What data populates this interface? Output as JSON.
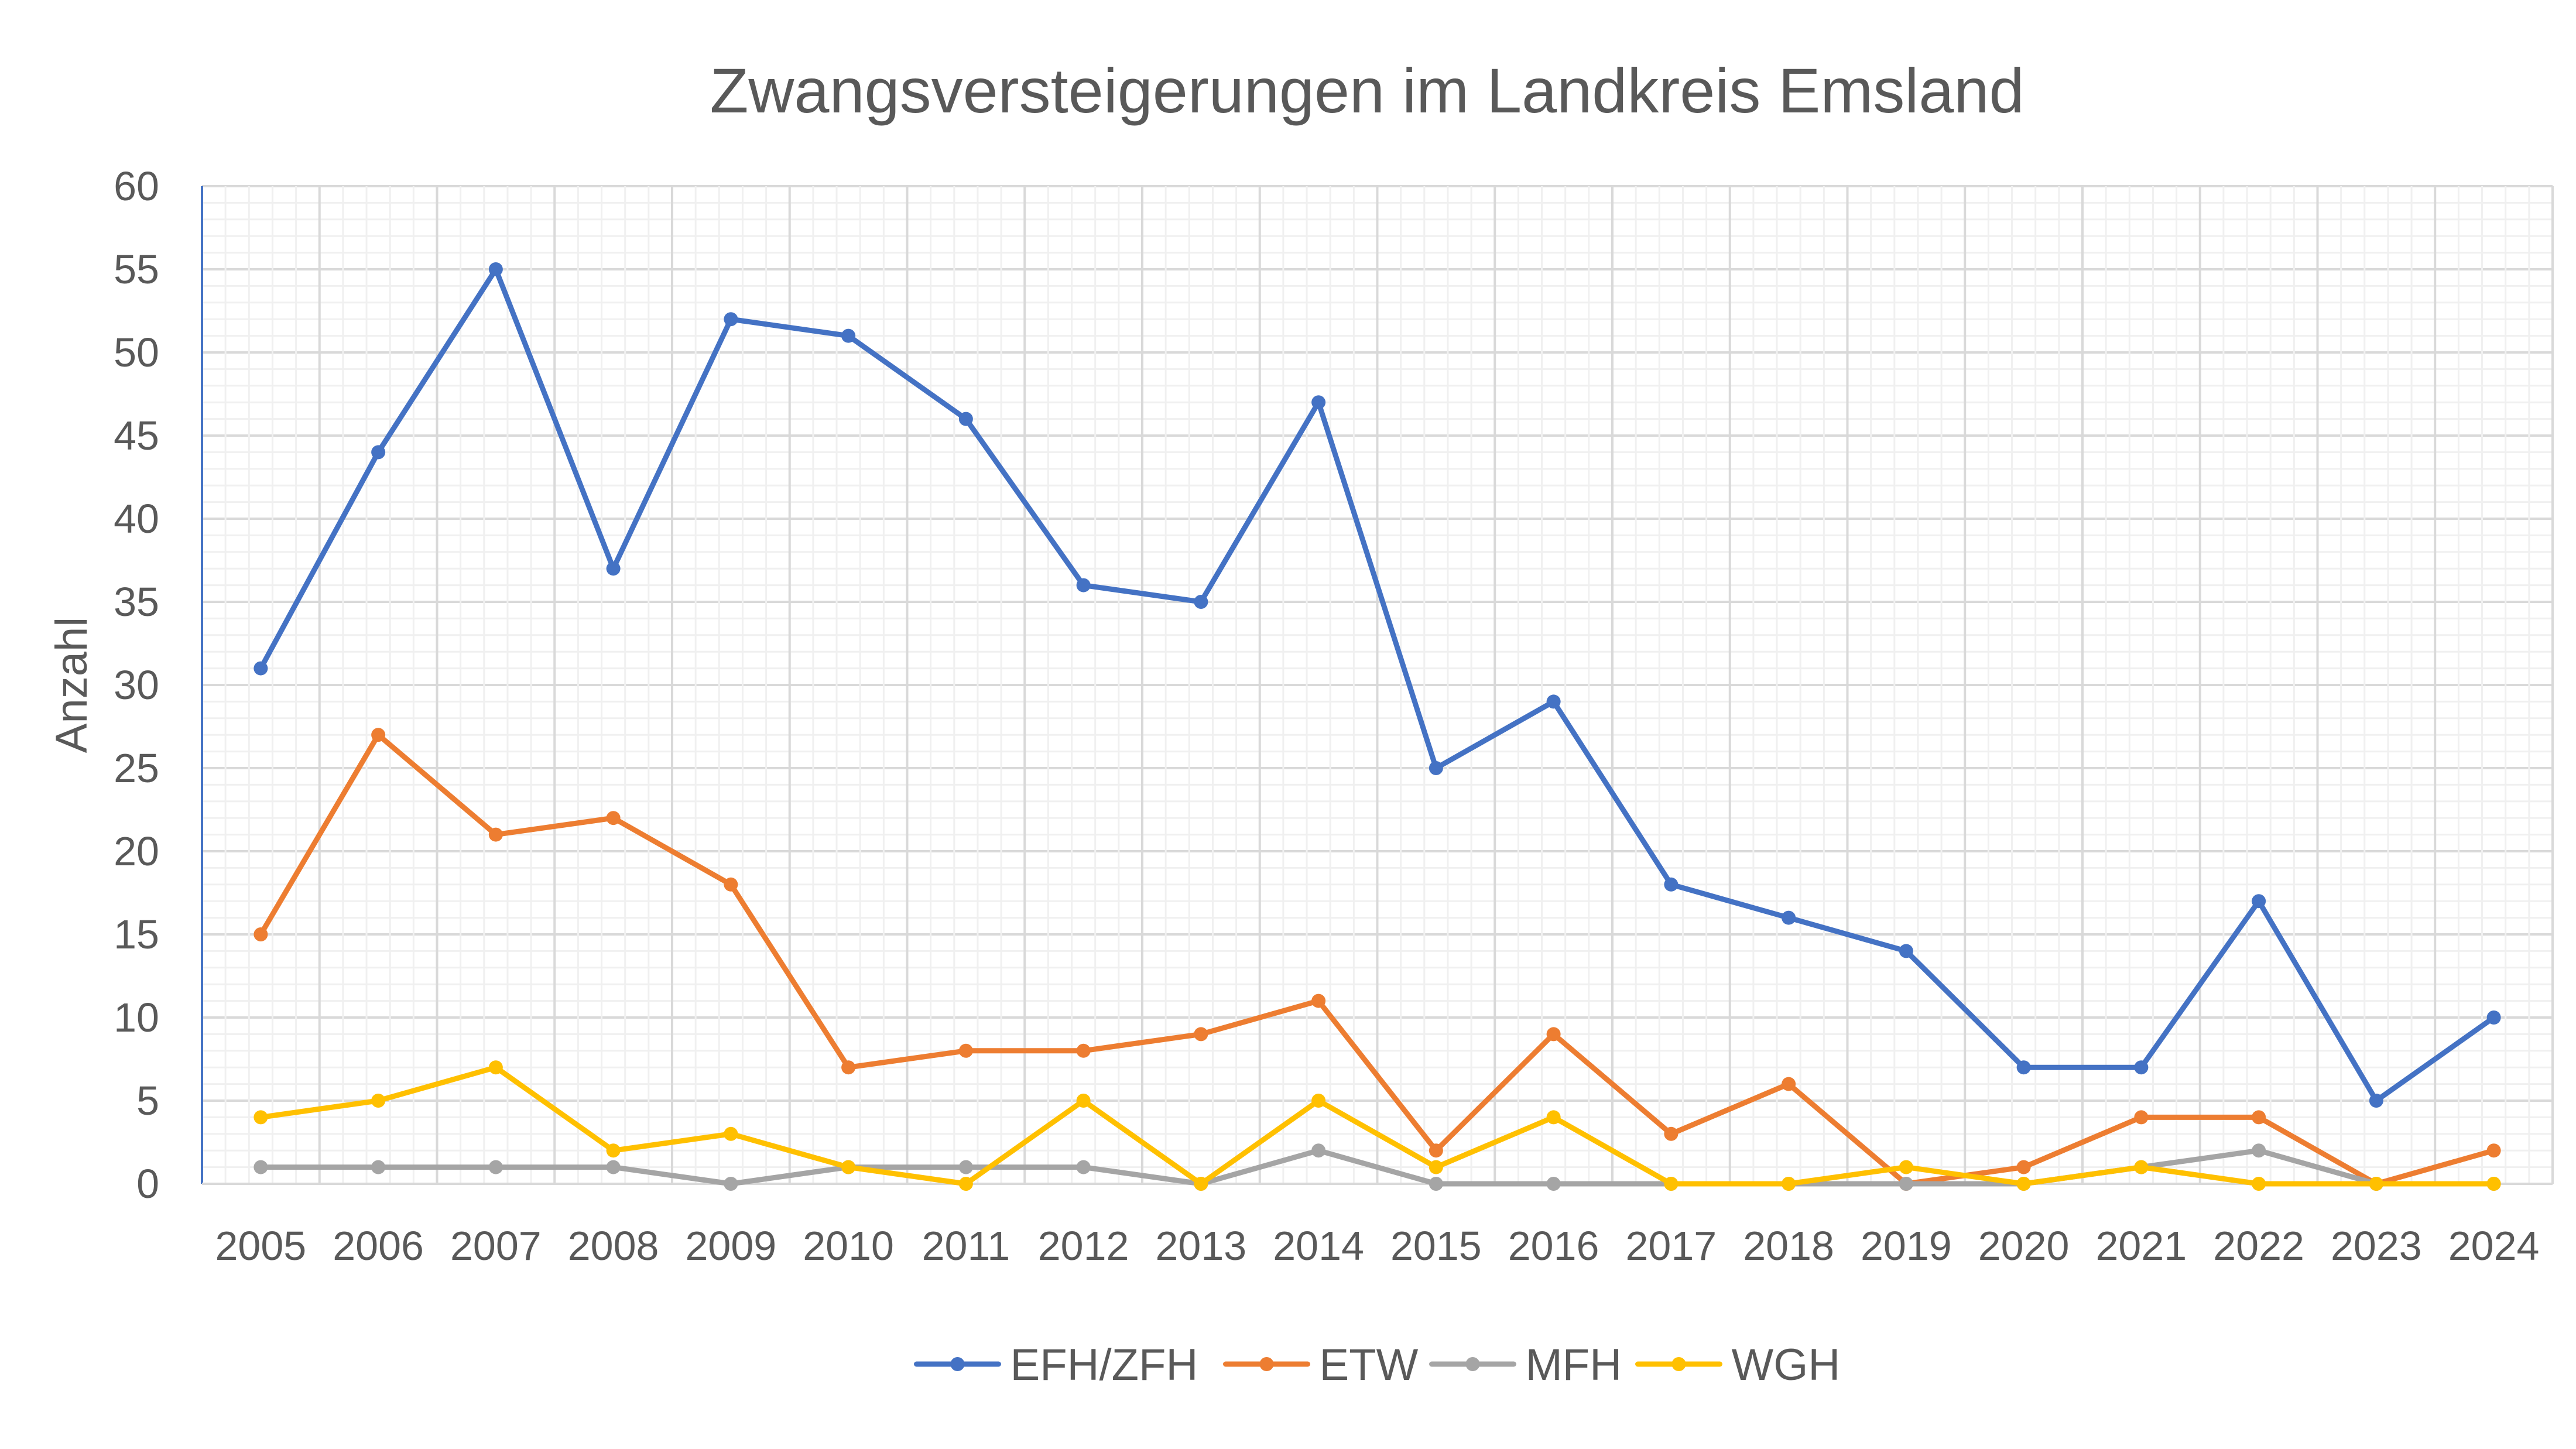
{
  "chart_data": {
    "type": "line",
    "title": "Zwangsversteigerungen im Landkreis Emsland",
    "xlabel": "",
    "ylabel": "Anzahl",
    "ylim": [
      0,
      60
    ],
    "yticks": [
      "0",
      "5",
      "10",
      "15",
      "20",
      "25",
      "30",
      "35",
      "40",
      "45",
      "50",
      "55",
      "60"
    ],
    "categories": [
      "2005",
      "2006",
      "2007",
      "2008",
      "2009",
      "2010",
      "2011",
      "2012",
      "2013",
      "2014",
      "2015",
      "2016",
      "2017",
      "2018",
      "2019",
      "2020",
      "2021",
      "2022",
      "2023",
      "2024"
    ],
    "grid": true,
    "legend_position": "bottom",
    "series": [
      {
        "name": "EFH/ZFH",
        "color": "#4472C4",
        "values": [
          31,
          44,
          55,
          37,
          52,
          51,
          46,
          36,
          35,
          47,
          25,
          29,
          18,
          16,
          14,
          7,
          7,
          17,
          5,
          10
        ]
      },
      {
        "name": "ETW",
        "color": "#ED7D31",
        "values": [
          15,
          27,
          21,
          22,
          18,
          7,
          8,
          8,
          9,
          11,
          2,
          9,
          3,
          6,
          0,
          1,
          4,
          4,
          0,
          2
        ]
      },
      {
        "name": "MFH",
        "color": "#A5A5A5",
        "values": [
          1,
          1,
          1,
          1,
          0,
          1,
          1,
          1,
          0,
          2,
          0,
          0,
          0,
          0,
          0,
          0,
          1,
          2,
          0,
          0
        ]
      },
      {
        "name": "WGH",
        "color": "#FFC000",
        "values": [
          4,
          5,
          7,
          2,
          3,
          1,
          0,
          5,
          0,
          5,
          1,
          4,
          0,
          0,
          1,
          0,
          1,
          0,
          0,
          0
        ]
      }
    ]
  }
}
